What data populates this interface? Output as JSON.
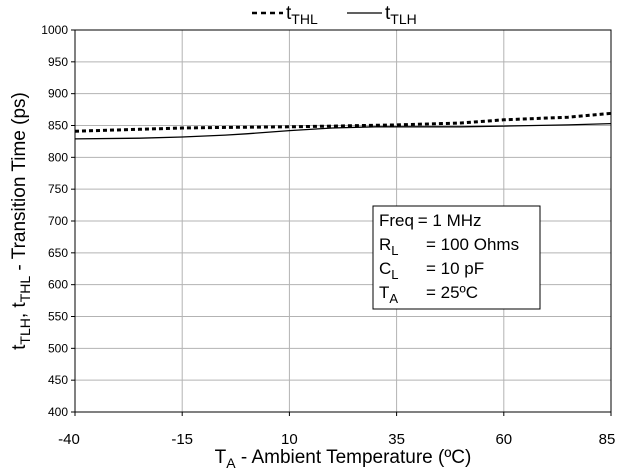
{
  "chart_data": {
    "type": "line",
    "xlabel": {
      "main": "T",
      "sub": "A",
      "rest": " - Ambient Temperature (ºC)"
    },
    "ylabel": {
      "p1": "t",
      "s1": "TLH",
      "p2": ", t",
      "s2": "THL",
      "p3": " - Transition Time (ps)"
    },
    "x_ticks": [
      -40,
      -15,
      10,
      35,
      60,
      85
    ],
    "y_ticks": [
      400,
      450,
      500,
      550,
      600,
      650,
      700,
      750,
      800,
      850,
      900,
      950,
      1000
    ],
    "xlim": [
      -40,
      85
    ],
    "ylim": [
      400,
      1000
    ],
    "grid": true,
    "legend_position": "top-center",
    "series": [
      {
        "name": {
          "main": "t",
          "sub": "THL"
        },
        "style": "dashed",
        "color": "#000000",
        "x": [
          -40,
          -25,
          -15,
          -5,
          10,
          20,
          35,
          50,
          60,
          75,
          85
        ],
        "y": [
          841,
          844,
          846,
          847,
          848,
          849,
          851,
          854,
          859,
          863,
          869
        ]
      },
      {
        "name": {
          "main": "t",
          "sub": "TLH"
        },
        "style": "solid",
        "color": "#000000",
        "x": [
          -40,
          -25,
          -15,
          -5,
          0,
          10,
          20,
          30,
          35,
          50,
          60,
          75,
          85
        ],
        "y": [
          829,
          830,
          832,
          835,
          837,
          842,
          846,
          848,
          848,
          848,
          849,
          851,
          853
        ]
      }
    ],
    "annotation": {
      "lines": [
        {
          "label": "Freq",
          "sub": "",
          "value": "= 1 MHz"
        },
        {
          "label": "R",
          "sub": "L",
          "value": "= 100 Ohms"
        },
        {
          "label": "C",
          "sub": "L",
          "value": "= 10 pF"
        },
        {
          "label": "T",
          "sub": "A",
          "value": "= 25ºC"
        }
      ]
    }
  }
}
